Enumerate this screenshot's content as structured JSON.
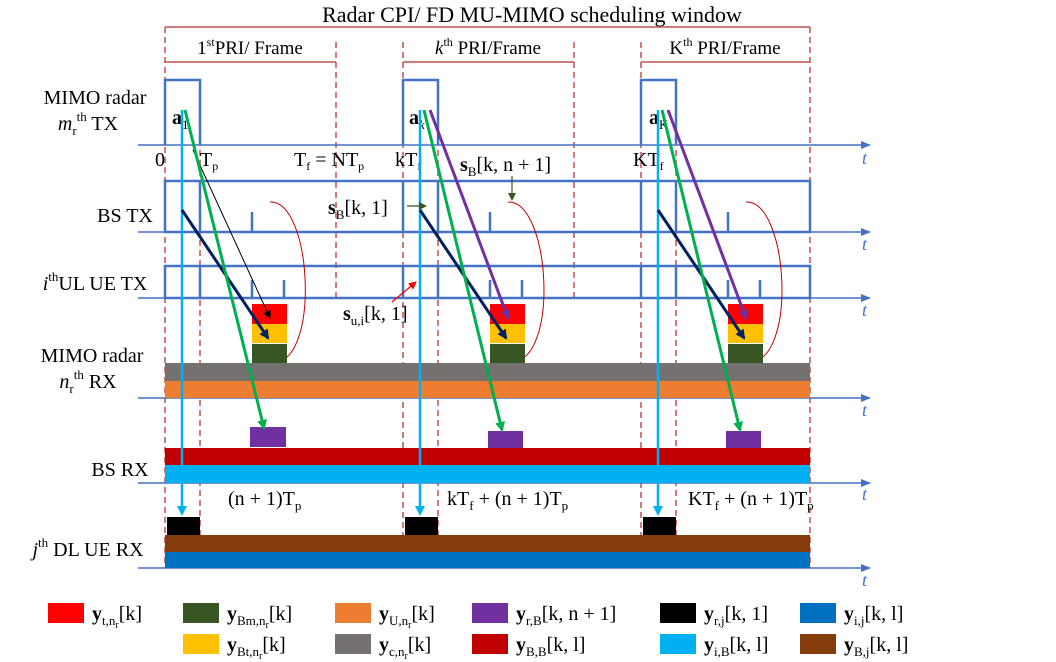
{
  "title": "Radar CPI/ FD MU-MIMO  scheduling window",
  "frames": [
    {
      "label_main": "1",
      "label_sup": "st",
      "label_rest": "PRI/ Frame"
    },
    {
      "label_main": "k",
      "label_sup": "th",
      "label_rest": " PRI/Frame"
    },
    {
      "label_main": "K",
      "label_sup": "th",
      "label_rest": " PRI/Frame"
    }
  ],
  "rows": {
    "radar_tx": {
      "line1": "MIMO radar",
      "line2_main": "m",
      "line2_sub": "r",
      "line2_sup": "th",
      "line2_rest": " TX"
    },
    "bs_tx": {
      "label": "BS TX"
    },
    "ul_tx": {
      "main": "i",
      "sup": "th",
      "rest": "UL UE TX"
    },
    "radar_rx": {
      "line1": "MIMO radar",
      "line2_main": "n",
      "line2_sub": "r",
      "line2_sup": "th",
      "line2_rest": " RX"
    },
    "bs_rx": {
      "label": "BS RX"
    },
    "dl_rx": {
      "main": "j",
      "sup": "th",
      "rest": " DL UE RX"
    }
  },
  "axis_label": "t",
  "pulses": [
    {
      "main": "a",
      "sub": "1"
    },
    {
      "main": "a",
      "sub": "k"
    },
    {
      "main": "a",
      "sub": "K"
    }
  ],
  "time_marks": {
    "zero": "0",
    "tp_main": "T",
    "tp_sub": "p",
    "tf_main": "T",
    "tf_sub": "f",
    "tf_eq": " = NT",
    "tf_eq_sub": "p",
    "ktf_main": "kT",
    "ktf_sub": "f",
    "KTf_main": "KT",
    "KTf_sub": "f"
  },
  "signal_labels": {
    "sb_k1_main": "s",
    "sb_k1_sub": "B",
    "sb_k1_arg": "[k, 1]",
    "sb_kn1_main": "s",
    "sb_kn1_sub": "B",
    "sb_kn1_arg": "[k, n + 1]",
    "su_k1_main": "s",
    "su_k1_sub": "u,i",
    "su_k1_arg": "[k, 1]"
  },
  "rx_time_labels": [
    "(n + 1)T",
    "kT",
    "KT"
  ],
  "rx_time_parts": {
    "p_sub": "p",
    "f_sub": "f",
    "plus_mid": " + (n + 1)T"
  },
  "colors": {
    "blue_line": "#4472c4",
    "red_dash": "#c0504d",
    "red": "#ff0000",
    "yellow": "#ffc000",
    "dark_green": "#375623",
    "orange": "#ed7d31",
    "gray": "#767171",
    "purple": "#7030a0",
    "dark_red": "#c00000",
    "black": "#000000",
    "light_blue": "#00b0f0",
    "mid_blue": "#0070c0",
    "brown": "#843c0c",
    "cyan_arrow": "#00b0f0",
    "green_arrow": "#00b050",
    "navy_arrow": "#002060"
  },
  "legend": [
    {
      "color": "#ff0000",
      "main": "y",
      "sub": "t,n",
      "subsub": "r",
      "arg": "[k]"
    },
    {
      "color": "#375623",
      "main": "y",
      "sub": "Bm,n",
      "subsub": "r",
      "arg": "[k]"
    },
    {
      "color": "#ed7d31",
      "main": "y",
      "sub": "U,n",
      "subsub": "r",
      "arg": "[k]"
    },
    {
      "color": "#7030a0",
      "main": "y",
      "sub": "r,B",
      "subsub": "",
      "arg": "[k, n + 1]"
    },
    {
      "color": "#000000",
      "main": "y",
      "sub": "r,j",
      "subsub": "",
      "arg": "[k, 1]"
    },
    {
      "color": "#0070c0",
      "main": "y",
      "sub": "i,j",
      "subsub": "",
      "arg": "[k, l]"
    },
    {
      "color": "#ffc000",
      "main": "y",
      "sub": "Bt,n",
      "subsub": "r",
      "arg": "[k]"
    },
    {
      "color": "#767171",
      "main": "y",
      "sub": "c,n",
      "subsub": "r",
      "arg": "[k]"
    },
    {
      "color": "#c00000",
      "main": "y",
      "sub": "B,B",
      "subsub": "",
      "arg": "[k, l]"
    },
    {
      "color": "#00b0f0",
      "main": "y",
      "sub": "i,B",
      "subsub": "",
      "arg": "[k, l]"
    },
    {
      "color": "#843c0c",
      "main": "y",
      "sub": "B,j",
      "subsub": "",
      "arg": "[k, l]"
    }
  ]
}
